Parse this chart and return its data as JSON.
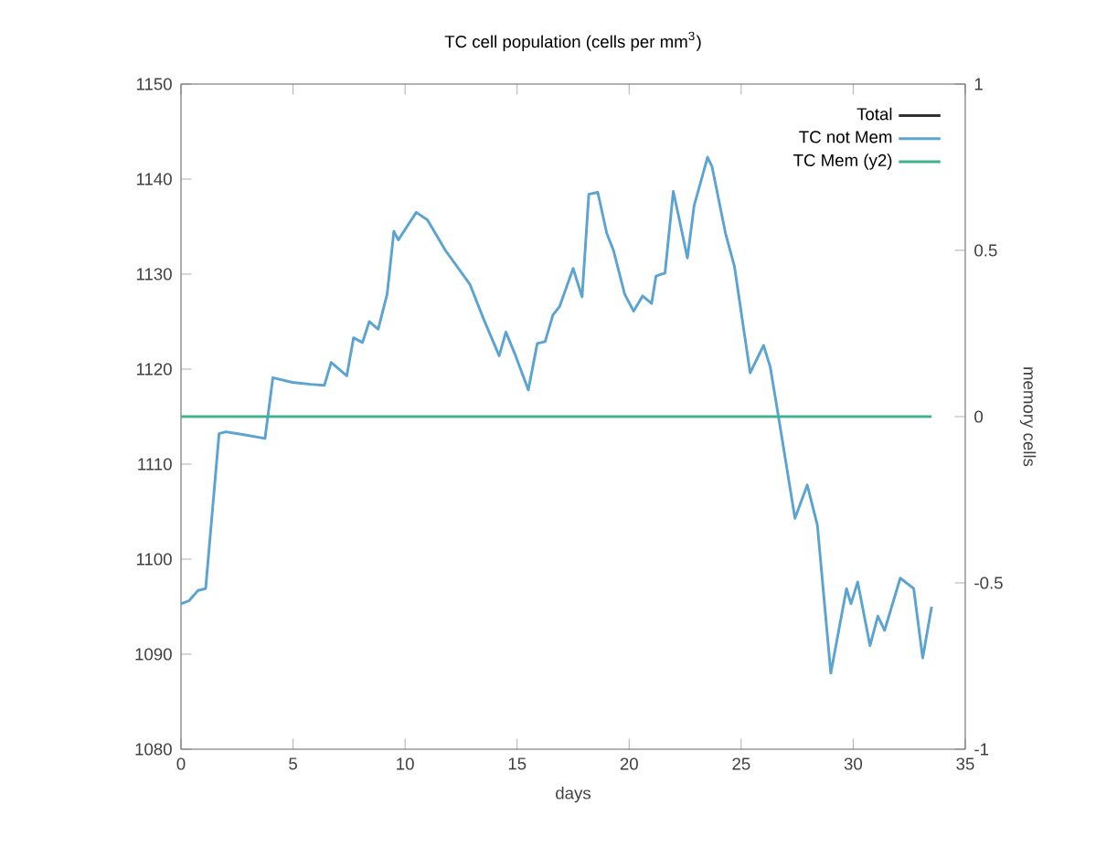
{
  "chart_data": {
    "type": "line",
    "title": "TC cell population (cells per mm$^{3}$)",
    "xlabel": "days",
    "y2label": "memory cells",
    "xlim": [
      0,
      35
    ],
    "xticks": [
      0,
      5,
      10,
      15,
      20,
      25,
      30,
      35
    ],
    "ylim": [
      1080,
      1150
    ],
    "yticks": [
      1080,
      1090,
      1100,
      1110,
      1120,
      1130,
      1140,
      1150
    ],
    "y2lim": [
      -1,
      1
    ],
    "y2ticks": [
      -1,
      -0.5,
      0,
      0.5,
      1
    ],
    "legend": "top right",
    "grid": false,
    "marker": "none",
    "line_style": "solid",
    "series": [
      {
        "name": "Total",
        "color": "#333333"
      },
      {
        "name": "TC not Mem",
        "color": "#5ba3d0",
        "x": [
          0,
          0.35,
          0.76,
          1.1,
          1.7,
          2.0,
          2.8,
          3.75,
          4.1,
          4.97,
          5.8,
          6.4,
          6.7,
          7.4,
          7.7,
          8.1,
          8.4,
          8.8,
          9.2,
          9.5,
          9.7,
          10.5,
          11.0,
          11.8,
          12.9,
          13.5,
          14.2,
          14.5,
          14.9,
          15.5,
          15.9,
          16.25,
          16.6,
          16.9,
          17.5,
          17.9,
          18.2,
          18.6,
          19.0,
          19.3,
          19.8,
          20.2,
          20.6,
          21.0,
          21.2,
          21.6,
          21.97,
          22.2,
          22.6,
          22.9,
          23.5,
          23.7,
          24.3,
          24.7,
          25.4,
          26.0,
          26.3,
          26.7,
          27.4,
          27.95,
          28.4,
          29.0,
          29.7,
          29.9,
          30.2,
          30.75,
          31.1,
          31.4,
          32.1,
          32.7,
          33.1,
          33.5
        ],
        "values": [
          1095.3,
          1095.6,
          1096.7,
          1096.9,
          1113.2,
          1113.4,
          1113.1,
          1112.7,
          1119.1,
          1118.6,
          1118.4,
          1118.3,
          1120.7,
          1119.3,
          1123.3,
          1122.8,
          1125.0,
          1124.2,
          1127.9,
          1134.5,
          1133.6,
          1136.5,
          1135.7,
          1132.5,
          1128.9,
          1125.3,
          1121.4,
          1123.9,
          1121.6,
          1117.8,
          1122.7,
          1122.9,
          1125.7,
          1126.6,
          1130.6,
          1127.6,
          1138.4,
          1138.6,
          1134.3,
          1132.5,
          1127.9,
          1126.1,
          1127.7,
          1126.9,
          1129.8,
          1130.1,
          1138.7,
          1136.2,
          1131.7,
          1137.2,
          1142.3,
          1141.3,
          1134.3,
          1130.8,
          1119.6,
          1122.5,
          1120.2,
          1114.5,
          1104.3,
          1107.8,
          1103.6,
          1088.0,
          1096.9,
          1095.3,
          1097.6,
          1090.9,
          1094.0,
          1092.5,
          1098.0,
          1096.9,
          1089.6,
          1095.0
        ]
      },
      {
        "name": "TC Mem (y2)",
        "color": "#3cb38a",
        "axis": "y2",
        "x": [
          0,
          33.5
        ],
        "values": [
          0,
          0
        ]
      }
    ]
  }
}
